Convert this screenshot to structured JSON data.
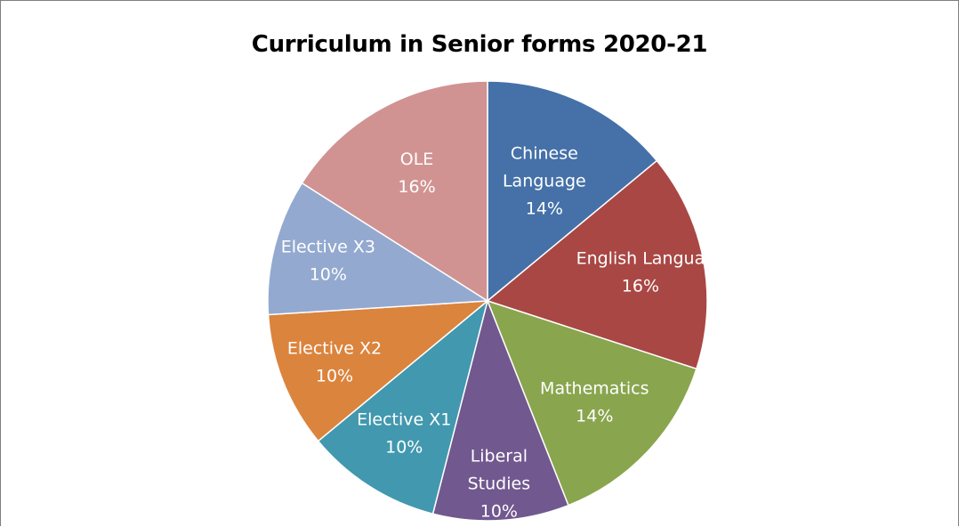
{
  "chart_data": {
    "type": "pie",
    "title": "Curriculum in Senior forms 2020-21",
    "slices": [
      {
        "name": "Chinese Language",
        "label_lines": [
          "Chinese",
          "Language",
          "14%"
        ],
        "value": 14,
        "color": "#4571a8"
      },
      {
        "name": "English Language",
        "label_lines": [
          "English Langua",
          "16%"
        ],
        "value": 16,
        "color": "#a94744"
      },
      {
        "name": "Mathematics",
        "label_lines": [
          "Mathematics",
          "14%"
        ],
        "value": 14,
        "color": "#89a54e"
      },
      {
        "name": "Liberal Studies",
        "label_lines": [
          "Liberal",
          "Studies",
          "10%"
        ],
        "value": 10,
        "color": "#71588f"
      },
      {
        "name": "Elective X1",
        "label_lines": [
          "Elective X1",
          "10%"
        ],
        "value": 10,
        "color": "#4298ae"
      },
      {
        "name": "Elective X2",
        "label_lines": [
          "Elective X2",
          "10%"
        ],
        "value": 10,
        "color": "#db843d"
      },
      {
        "name": "Elective X3",
        "label_lines": [
          "Elective X3",
          "10%"
        ],
        "value": 10,
        "color": "#93a9cf"
      },
      {
        "name": "OLE",
        "label_lines": [
          "OLE",
          "16%"
        ],
        "value": 16,
        "color": "#d19392"
      }
    ],
    "start": "top",
    "direction": "clockwise",
    "legend": "none"
  }
}
